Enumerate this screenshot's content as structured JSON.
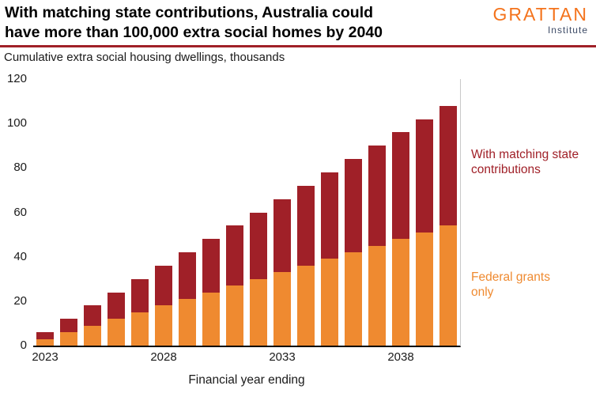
{
  "header": {
    "title_line1": "With matching state contributions, Australia could",
    "title_line2": "have more than 100,000 extra social homes by 2040",
    "logo": {
      "name": "GRATTAN",
      "sub": "Institute"
    }
  },
  "subtitle": "Cumulative extra social housing dwellings, thousands",
  "chart_data": {
    "type": "bar",
    "stacked": true,
    "title": "With matching state contributions, Australia could have more than 100,000 extra social homes by 2040",
    "subtitle": "Cumulative extra social housing dwellings, thousands",
    "xlabel": "Financial year ending",
    "ylabel": "Cumulative extra social housing dwellings, thousands",
    "ylim": [
      0,
      120
    ],
    "yticks": [
      0,
      20,
      40,
      60,
      80,
      100,
      120
    ],
    "xticks": [
      2023,
      2028,
      2033,
      2038
    ],
    "grid": false,
    "legend_position": "right-annotations",
    "categories": [
      2023,
      2024,
      2025,
      2026,
      2027,
      2028,
      2029,
      2030,
      2031,
      2032,
      2033,
      2034,
      2035,
      2036,
      2037,
      2038,
      2039,
      2040
    ],
    "series": [
      {
        "name": "Federal grants only",
        "color": "#ef8a30",
        "values": [
          3,
          6,
          9,
          12,
          15,
          18,
          21,
          24,
          27,
          30,
          33,
          36,
          39,
          42,
          45,
          48,
          51,
          54
        ]
      },
      {
        "name": "With matching state contributions",
        "color": "#a02028",
        "values": [
          3,
          6,
          9,
          12,
          15,
          18,
          21,
          24,
          27,
          30,
          33,
          36,
          39,
          42,
          45,
          48,
          51,
          54
        ]
      }
    ],
    "totals": [
      6,
      12,
      18,
      24,
      30,
      36,
      42,
      48,
      54,
      60,
      66,
      72,
      78,
      84,
      90,
      96,
      102,
      108
    ],
    "annotations": [
      {
        "text": "With matching state contributions",
        "color": "#a02028"
      },
      {
        "text": "Federal grants only",
        "color": "#ef8a30"
      }
    ]
  }
}
